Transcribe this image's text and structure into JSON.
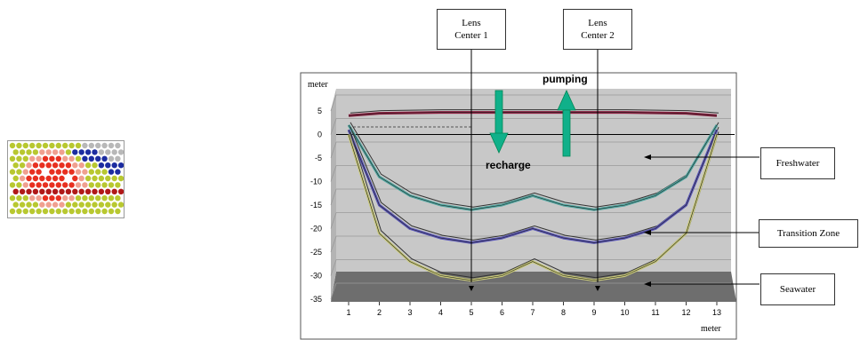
{
  "lens_labels": [
    {
      "line1": "Lens",
      "line2": "Center 1"
    },
    {
      "line1": "Lens",
      "line2": "Center 2"
    }
  ],
  "zone_labels": {
    "freshwater": "Freshwater",
    "transition": "Transition Zone",
    "seawater": "Seawater"
  },
  "annotations": {
    "pumping": "pumping",
    "recharge": "recharge"
  },
  "axis_units": {
    "y": "meter",
    "x": "meter"
  },
  "y_ticks": [
    "5",
    "0",
    "-5",
    "-10",
    "-15",
    "-20",
    "-25",
    "-30",
    "-35"
  ],
  "x_ticks": [
    "1",
    "2",
    "3",
    "4",
    "5",
    "6",
    "7",
    "8",
    "9",
    "10",
    "11",
    "12",
    "13"
  ],
  "colors": {
    "top_surface": "#8b1e3f",
    "freshwater_boundary": "#4fa6a0",
    "transition_boundary": "#5a56b8",
    "seawater_boundary": "#c8c878",
    "arrow": "#10b08a",
    "plot_bg": "#c8c8c8",
    "floor": "#707070"
  },
  "chart_data": {
    "type": "line",
    "x": [
      1,
      2,
      3,
      4,
      5,
      6,
      7,
      8,
      9,
      10,
      11,
      12,
      13
    ],
    "ylim": [
      -35,
      5
    ],
    "series": [
      {
        "values": [
          4,
          4.5,
          4.6,
          4.7,
          4.7,
          4.7,
          4.7,
          4.7,
          4.7,
          4.7,
          4.6,
          4.5,
          4
        ]
      },
      {
        "values": [
          2,
          -9,
          -13,
          -15,
          -16,
          -15,
          -13,
          -15,
          -16,
          -15,
          -13,
          -9,
          2
        ]
      },
      {
        "values": [
          1,
          -15,
          -20,
          -22,
          -23,
          -22,
          -20,
          -22,
          -23,
          -22,
          -20,
          -15,
          1
        ]
      },
      {
        "values": [
          0,
          -21,
          -27,
          -30,
          -31,
          -30,
          -27,
          -30,
          -31,
          -30,
          -27,
          -21,
          0
        ]
      }
    ]
  }
}
